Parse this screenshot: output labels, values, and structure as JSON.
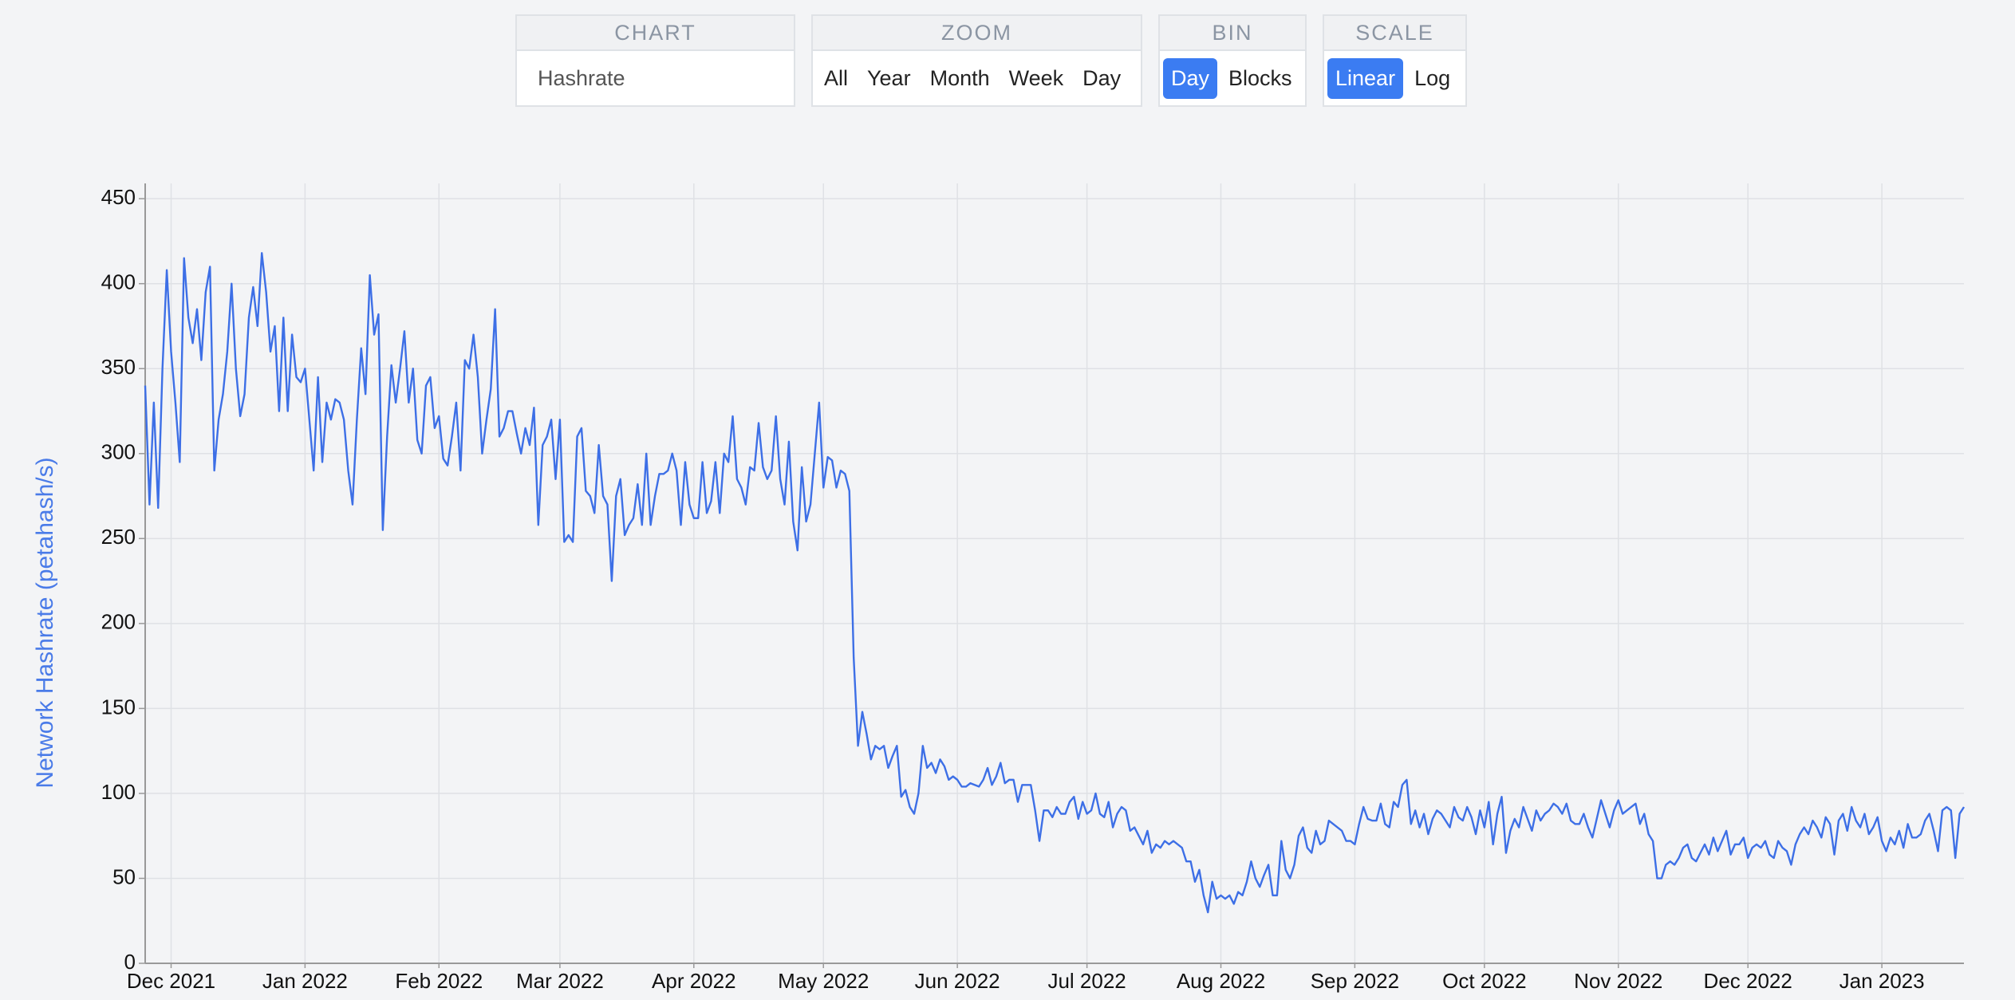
{
  "controls": [
    {
      "label": "CHART",
      "options": [
        "Hashrate"
      ]
    },
    {
      "label": "ZOOM",
      "options": [
        "All",
        "Year",
        "Month",
        "Week",
        "Day"
      ]
    },
    {
      "label": "BIN",
      "options": [
        "Day",
        "Blocks"
      ],
      "active": 0
    },
    {
      "label": "SCALE",
      "options": [
        "Linear",
        "Log"
      ],
      "active": 0
    }
  ],
  "chart_data": {
    "type": "line",
    "y_label": "Network Hashrate (petahash/s)",
    "y_label_color": "#4a7be8",
    "color": "#3d6fe6",
    "ylim": [
      0,
      459
    ],
    "yticks": [
      0,
      50,
      100,
      150,
      200,
      250,
      300,
      350,
      400,
      450
    ],
    "grid": true,
    "categories": [
      null,
      null,
      null,
      null,
      null,
      null,
      "Dec 2021",
      null,
      null,
      null,
      null,
      null,
      null,
      null,
      null,
      null,
      null,
      null,
      null,
      null,
      null,
      null,
      null,
      null,
      null,
      null,
      null,
      null,
      null,
      null,
      null,
      null,
      null,
      null,
      null,
      null,
      null,
      "Jan 2022",
      null,
      null,
      null,
      null,
      null,
      null,
      null,
      null,
      null,
      null,
      null,
      null,
      null,
      null,
      null,
      null,
      null,
      null,
      null,
      null,
      null,
      null,
      null,
      null,
      null,
      null,
      null,
      null,
      null,
      null,
      "Feb 2022",
      null,
      null,
      null,
      null,
      null,
      null,
      null,
      null,
      null,
      null,
      null,
      null,
      null,
      null,
      null,
      null,
      null,
      null,
      null,
      null,
      null,
      null,
      null,
      null,
      null,
      null,
      null,
      "Mar 2022",
      null,
      null,
      null,
      null,
      null,
      null,
      null,
      null,
      null,
      null,
      null,
      null,
      null,
      null,
      null,
      null,
      null,
      null,
      null,
      null,
      null,
      null,
      null,
      null,
      null,
      null,
      null,
      null,
      null,
      null,
      "Apr 2022",
      null,
      null,
      null,
      null,
      null,
      null,
      null,
      null,
      null,
      null,
      null,
      null,
      null,
      null,
      null,
      null,
      null,
      null,
      null,
      null,
      null,
      null,
      null,
      null,
      null,
      null,
      null,
      null,
      null,
      "May 2022",
      null,
      null,
      null,
      null,
      null,
      null,
      null,
      null,
      null,
      null,
      null,
      null,
      null,
      null,
      null,
      null,
      null,
      null,
      null,
      null,
      null,
      null,
      null,
      null,
      null,
      null,
      null,
      null,
      null,
      null,
      "Jun 2022",
      null,
      null,
      null,
      null,
      null,
      null,
      null,
      null,
      null,
      null,
      null,
      null,
      null,
      null,
      null,
      null,
      null,
      null,
      null,
      null,
      null,
      null,
      null,
      null,
      null,
      null,
      null,
      null,
      null,
      "Jul 2022",
      null,
      null,
      null,
      null,
      null,
      null,
      null,
      null,
      null,
      null,
      null,
      null,
      null,
      null,
      null,
      null,
      null,
      null,
      null,
      null,
      null,
      null,
      null,
      null,
      null,
      null,
      null,
      null,
      null,
      null,
      "Aug 2022",
      null,
      null,
      null,
      null,
      null,
      null,
      null,
      null,
      null,
      null,
      null,
      null,
      null,
      null,
      null,
      null,
      null,
      null,
      null,
      null,
      null,
      null,
      null,
      null,
      null,
      null,
      null,
      null,
      null,
      null,
      "Sep 2022",
      null,
      null,
      null,
      null,
      null,
      null,
      null,
      null,
      null,
      null,
      null,
      null,
      null,
      null,
      null,
      null,
      null,
      null,
      null,
      null,
      null,
      null,
      null,
      null,
      null,
      null,
      null,
      null,
      null,
      "Oct 2022",
      null,
      null,
      null,
      null,
      null,
      null,
      null,
      null,
      null,
      null,
      null,
      null,
      null,
      null,
      null,
      null,
      null,
      null,
      null,
      null,
      null,
      null,
      null,
      null,
      null,
      null,
      null,
      null,
      null,
      null,
      "Nov 2022",
      null,
      null,
      null,
      null,
      null,
      null,
      null,
      null,
      null,
      null,
      null,
      null,
      null,
      null,
      null,
      null,
      null,
      null,
      null,
      null,
      null,
      null,
      null,
      null,
      null,
      null,
      null,
      null,
      null,
      "Dec 2022",
      null,
      null,
      null,
      null,
      null,
      null,
      null,
      null,
      null,
      null,
      null,
      null,
      null,
      null,
      null,
      null,
      null,
      null,
      null,
      null,
      null,
      null,
      null,
      null,
      null,
      null,
      null,
      null,
      null,
      null,
      "Jan 2023",
      null,
      null,
      null,
      null,
      null,
      null,
      null,
      null,
      null,
      null,
      null,
      null,
      null,
      null,
      null,
      null,
      null,
      null,
      null
    ],
    "values": [
      340,
      270,
      330,
      268,
      350,
      408,
      360,
      330,
      295,
      415,
      380,
      365,
      385,
      355,
      395,
      410,
      290,
      320,
      335,
      360,
      400,
      350,
      322,
      335,
      380,
      398,
      375,
      418,
      395,
      360,
      375,
      325,
      380,
      325,
      370,
      345,
      342,
      350,
      320,
      290,
      345,
      295,
      330,
      320,
      332,
      330,
      320,
      290,
      270,
      320,
      362,
      335,
      405,
      370,
      382,
      255,
      310,
      352,
      330,
      350,
      372,
      330,
      350,
      308,
      300,
      340,
      345,
      315,
      322,
      297,
      293,
      310,
      330,
      290,
      355,
      350,
      370,
      345,
      300,
      320,
      338,
      385,
      310,
      315,
      325,
      325,
      312,
      300,
      315,
      305,
      327,
      258,
      305,
      310,
      320,
      285,
      320,
      248,
      252,
      248,
      310,
      315,
      278,
      275,
      265,
      305,
      275,
      270,
      225,
      275,
      285,
      252,
      258,
      262,
      282,
      258,
      300,
      258,
      275,
      288,
      288,
      290,
      300,
      290,
      258,
      295,
      270,
      262,
      262,
      295,
      265,
      272,
      295,
      265,
      300,
      295,
      322,
      285,
      280,
      270,
      292,
      290,
      318,
      292,
      285,
      290,
      322,
      285,
      270,
      307,
      260,
      243,
      292,
      260,
      270,
      300,
      330,
      280,
      298,
      296,
      280,
      290,
      288,
      278,
      180,
      128,
      148,
      135,
      120,
      128,
      126,
      128,
      115,
      122,
      128,
      98,
      102,
      92,
      88,
      100,
      128,
      115,
      118,
      112,
      120,
      116,
      108,
      110,
      108,
      104,
      104,
      106,
      105,
      104,
      108,
      115,
      105,
      110,
      118,
      106,
      108,
      108,
      95,
      105,
      105,
      105,
      90,
      72,
      90,
      90,
      86,
      92,
      88,
      88,
      95,
      98,
      85,
      95,
      88,
      90,
      100,
      88,
      86,
      95,
      80,
      88,
      92,
      90,
      78,
      80,
      75,
      70,
      78,
      65,
      70,
      68,
      72,
      70,
      72,
      70,
      68,
      60,
      60,
      48,
      55,
      40,
      30,
      48,
      38,
      40,
      38,
      40,
      35,
      42,
      40,
      48,
      60,
      50,
      45,
      52,
      58,
      40,
      40,
      72,
      55,
      50,
      58,
      75,
      80,
      68,
      65,
      78,
      70,
      72,
      84,
      82,
      80,
      78,
      72,
      72,
      70,
      82,
      92,
      85,
      84,
      84,
      94,
      82,
      80,
      95,
      92,
      105,
      108,
      82,
      90,
      80,
      88,
      76,
      85,
      90,
      88,
      84,
      80,
      92,
      86,
      84,
      92,
      86,
      76,
      90,
      80,
      95,
      70,
      88,
      98,
      65,
      78,
      85,
      80,
      92,
      85,
      78,
      90,
      84,
      88,
      90,
      94,
      92,
      88,
      94,
      84,
      82,
      82,
      88,
      80,
      74,
      85,
      96,
      88,
      80,
      90,
      96,
      88,
      90,
      92,
      94,
      82,
      88,
      76,
      72,
      50,
      50,
      58,
      60,
      58,
      62,
      68,
      70,
      62,
      60,
      65,
      70,
      64,
      74,
      66,
      72,
      78,
      64,
      70,
      70,
      74,
      62,
      68,
      70,
      68,
      72,
      64,
      62,
      72,
      68,
      66,
      58,
      70,
      76,
      80,
      76,
      84,
      80,
      74,
      86,
      82,
      64,
      84,
      88,
      78,
      92,
      84,
      80,
      88,
      76,
      80,
      86,
      72,
      66,
      74,
      70,
      78,
      68,
      82,
      74,
      74,
      76,
      84,
      88,
      78,
      66,
      90,
      92,
      90,
      62,
      88,
      92
    ]
  }
}
